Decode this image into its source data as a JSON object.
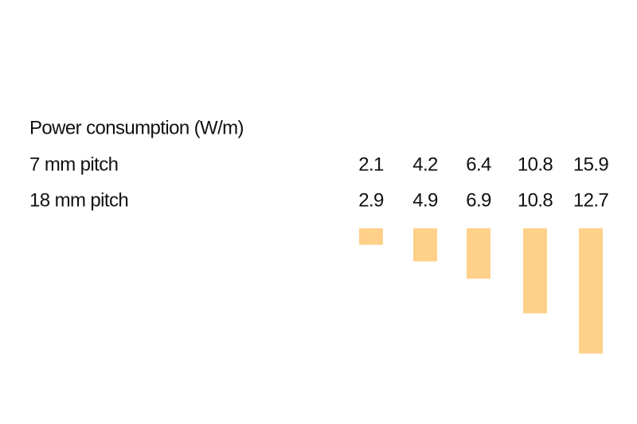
{
  "table": {
    "title": "Power consumption (W/m)",
    "rows": [
      {
        "label": "7 mm pitch",
        "values": [
          2.1,
          4.2,
          6.4,
          10.8,
          15.9
        ]
      },
      {
        "label": "18 mm pitch",
        "values": [
          2.9,
          4.9,
          6.9,
          10.8,
          12.7
        ]
      }
    ],
    "bar_color": "#ffd08a"
  }
}
